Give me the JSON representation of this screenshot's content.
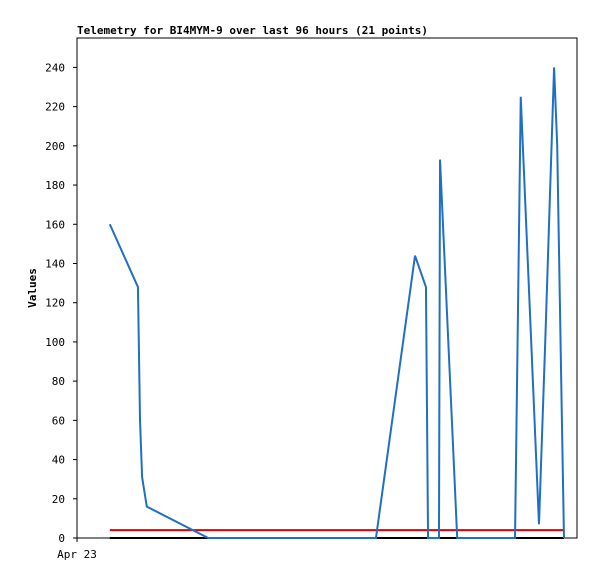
{
  "chart_data": {
    "type": "line",
    "title": "Telemetry for BI4MYM-9 over last 96 hours (21 points)",
    "ylabel": "Values",
    "x": [
      6.3,
      11.7,
      12.1,
      12.5,
      13.4,
      25.2,
      57.4,
      64.9,
      67.0,
      67.4,
      69.5,
      69.7,
      73.0,
      84.1,
      85.2,
      88.7,
      89.9,
      91.6,
      92.2,
      93.1,
      93.5
    ],
    "xlim": [
      0,
      96
    ],
    "xticks": [
      {
        "value": 0,
        "label": "Apr 23"
      }
    ],
    "ylim": [
      0,
      255
    ],
    "yticks": [
      0,
      20,
      40,
      60,
      80,
      100,
      120,
      140,
      160,
      180,
      200,
      220,
      240
    ],
    "series": [
      {
        "color": "#000000",
        "values": [
          0,
          0,
          0,
          0,
          0,
          0,
          0,
          0,
          0,
          0,
          0,
          0,
          0,
          0,
          0,
          0,
          0,
          0,
          0,
          0,
          0
        ]
      },
      {
        "color": "#e00000",
        "values": [
          4,
          4,
          4,
          4,
          4,
          4,
          4,
          4,
          4,
          4,
          4,
          4,
          4,
          4,
          4,
          4,
          4,
          4,
          4,
          4,
          4
        ]
      },
      {
        "color": "#1f6fc5",
        "values": [
          160,
          128,
          60,
          31,
          16,
          0,
          0,
          144,
          128,
          0,
          0,
          193,
          0,
          0,
          225,
          7,
          100,
          240,
          200,
          60,
          0
        ]
      }
    ]
  }
}
